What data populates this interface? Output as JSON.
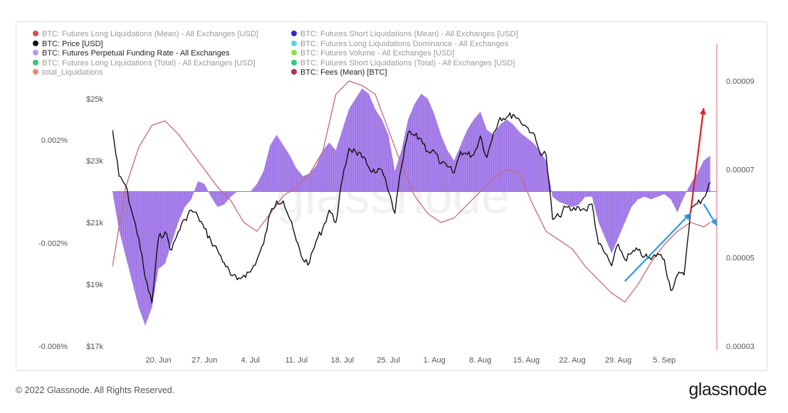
{
  "legend": [
    {
      "label": "BTC: Futures Long Liquidations (Mean) - All Exchanges [USD]",
      "color": "#e0474c",
      "dim": true,
      "col": 0,
      "row": 0
    },
    {
      "label": "BTC: Futures Short Liquidations (Mean) - All Exchanges [USD]",
      "color": "#2d2ad6",
      "dim": true,
      "col": 1,
      "row": 0
    },
    {
      "label": "BTC: Price [USD]",
      "color": "#111111",
      "dim": false,
      "col": 0,
      "row": 1
    },
    {
      "label": "BTC: Futures Long Liquidations Dominance - All Exchanges",
      "color": "#56d6e6",
      "dim": true,
      "col": 1,
      "row": 1
    },
    {
      "label": "BTC: Futures Perpetual Funding Rate - All Exchanges",
      "color": "#b49be8",
      "dim": false,
      "col": 0,
      "row": 2
    },
    {
      "label": "BTC: Futures Volume - All Exchanges [USD]",
      "color": "#8ee04a",
      "dim": true,
      "col": 1,
      "row": 2
    },
    {
      "label": "BTC: Futures Long Liquidations (Total) - All Exchanges [USD]",
      "color": "#3ec27c",
      "dim": true,
      "col": 0,
      "row": 3
    },
    {
      "label": "BTC: Futures Short Liquidations (Total) - All Exchanges [USD]",
      "color": "#2ad07a",
      "dim": true,
      "col": 1,
      "row": 3
    },
    {
      "label": "total_Liquidations",
      "color": "#f0877a",
      "dim": true,
      "col": 0,
      "row": 4
    },
    {
      "label": "BTC: Fees (Mean) [BTC]",
      "color": "#b0344e",
      "dim": false,
      "col": 1,
      "row": 4
    }
  ],
  "footer": {
    "copyright": "© 2022 Glassnode. All Rights Reserved.",
    "brand": "glassnode"
  },
  "watermark": "glassnode",
  "colors": {
    "funding_fill": "#9b6fe6",
    "funding_stroke": "#7a4bd6",
    "price": "#111111",
    "fees": "#c76a7e",
    "arrow_up": "#e02020",
    "arrow_trend": "#2a9ae8"
  },
  "chart_data": {
    "type": "line",
    "x_ticks": [
      "20. Jun",
      "27. Jun",
      "4. Jul",
      "11. Jul",
      "18. Jul",
      "25. Jul",
      "1. Aug",
      "8. Aug",
      "15. Aug",
      "22. Aug",
      "29. Aug",
      "5. Sep"
    ],
    "price_axis": {
      "ticks": [
        "$25k",
        "$23k",
        "$21k",
        "$19k",
        "$17k"
      ],
      "values": [
        25000,
        23000,
        21000,
        19000,
        17000
      ]
    },
    "funding_axis": {
      "ticks": [
        "0.002%",
        "-0.002%",
        "-0.006%"
      ],
      "values": [
        0.002,
        -0.002,
        -0.006
      ]
    },
    "fees_axis": {
      "ticks": [
        "0.00009",
        "0.00007",
        "0.00005",
        "0.00003"
      ],
      "values": [
        9e-05,
        7e-05,
        5e-05,
        3e-05
      ]
    },
    "series": [
      {
        "name": "BTC: Price [USD]",
        "values": [
          [
            "2022-06-13",
            24000
          ],
          [
            "2022-06-14",
            22500
          ],
          [
            "2022-06-15",
            22200
          ],
          [
            "2022-06-16",
            21300
          ],
          [
            "2022-06-17",
            20500
          ],
          [
            "2022-06-18",
            19200
          ],
          [
            "2022-06-19",
            18400
          ],
          [
            "2022-06-20",
            20500
          ],
          [
            "2022-06-21",
            20700
          ],
          [
            "2022-06-22",
            20100
          ],
          [
            "2022-06-23",
            20700
          ],
          [
            "2022-06-24",
            21100
          ],
          [
            "2022-06-25",
            21400
          ],
          [
            "2022-06-26",
            21200
          ],
          [
            "2022-06-27",
            20800
          ],
          [
            "2022-06-28",
            20400
          ],
          [
            "2022-06-29",
            20100
          ],
          [
            "2022-06-30",
            19700
          ],
          [
            "2022-07-01",
            19300
          ],
          [
            "2022-07-02",
            19150
          ],
          [
            "2022-07-03",
            19300
          ],
          [
            "2022-07-04",
            19400
          ],
          [
            "2022-07-05",
            19800
          ],
          [
            "2022-07-06",
            20300
          ],
          [
            "2022-07-07",
            21300
          ],
          [
            "2022-07-08",
            21700
          ],
          [
            "2022-07-09",
            21700
          ],
          [
            "2022-07-10",
            21100
          ],
          [
            "2022-07-11",
            20400
          ],
          [
            "2022-07-12",
            19800
          ],
          [
            "2022-07-13",
            19700
          ],
          [
            "2022-07-14",
            20400
          ],
          [
            "2022-07-15",
            20800
          ],
          [
            "2022-07-16",
            21400
          ],
          [
            "2022-07-17",
            21000
          ],
          [
            "2022-07-18",
            22400
          ],
          [
            "2022-07-19",
            23400
          ],
          [
            "2022-07-20",
            23300
          ],
          [
            "2022-07-21",
            23100
          ],
          [
            "2022-07-22",
            22800
          ],
          [
            "2022-07-23",
            22600
          ],
          [
            "2022-07-24",
            22700
          ],
          [
            "2022-07-25",
            22000
          ],
          [
            "2022-07-26",
            21300
          ],
          [
            "2022-07-27",
            22800
          ],
          [
            "2022-07-28",
            23900
          ],
          [
            "2022-07-29",
            23800
          ],
          [
            "2022-07-30",
            23700
          ],
          [
            "2022-07-31",
            23300
          ],
          [
            "2022-08-01",
            23300
          ],
          [
            "2022-08-02",
            22900
          ],
          [
            "2022-08-03",
            22800
          ],
          [
            "2022-08-04",
            22600
          ],
          [
            "2022-08-05",
            23300
          ],
          [
            "2022-08-06",
            23200
          ],
          [
            "2022-08-07",
            23200
          ],
          [
            "2022-08-08",
            23800
          ],
          [
            "2022-08-09",
            23100
          ],
          [
            "2022-08-10",
            23900
          ],
          [
            "2022-08-11",
            24400
          ],
          [
            "2022-08-12",
            24400
          ],
          [
            "2022-08-13",
            24500
          ],
          [
            "2022-08-14",
            24300
          ],
          [
            "2022-08-15",
            24100
          ],
          [
            "2022-08-16",
            23900
          ],
          [
            "2022-08-17",
            23300
          ],
          [
            "2022-08-18",
            23200
          ],
          [
            "2022-08-19",
            21100
          ],
          [
            "2022-08-20",
            21200
          ],
          [
            "2022-08-21",
            21500
          ],
          [
            "2022-08-22",
            21400
          ],
          [
            "2022-08-23",
            21500
          ],
          [
            "2022-08-24",
            21400
          ],
          [
            "2022-08-25",
            21600
          ],
          [
            "2022-08-26",
            20300
          ],
          [
            "2022-08-27",
            20000
          ],
          [
            "2022-08-28",
            19600
          ],
          [
            "2022-08-29",
            20300
          ],
          [
            "2022-08-30",
            19800
          ],
          [
            "2022-08-31",
            20000
          ],
          [
            "2022-09-01",
            20100
          ],
          [
            "2022-09-02",
            19900
          ],
          [
            "2022-09-03",
            19800
          ],
          [
            "2022-09-04",
            20000
          ],
          [
            "2022-09-05",
            19800
          ],
          [
            "2022-09-06",
            18800
          ],
          [
            "2022-09-07",
            19300
          ],
          [
            "2022-09-08",
            19300
          ],
          [
            "2022-09-09",
            21400
          ],
          [
            "2022-09-10",
            21600
          ],
          [
            "2022-09-11",
            21800
          ],
          [
            "2022-09-12",
            22300
          ]
        ]
      },
      {
        "name": "BTC: Futures Perpetual Funding Rate - All Exchanges",
        "values": [
          [
            "2022-06-13",
            0.0
          ],
          [
            "2022-06-14",
            -0.0015
          ],
          [
            "2022-06-15",
            -0.0025
          ],
          [
            "2022-06-16",
            -0.0035
          ],
          [
            "2022-06-17",
            -0.0045
          ],
          [
            "2022-06-18",
            -0.0052
          ],
          [
            "2022-06-19",
            -0.0045
          ],
          [
            "2022-06-20",
            -0.003
          ],
          [
            "2022-06-21",
            -0.0028
          ],
          [
            "2022-06-22",
            -0.002
          ],
          [
            "2022-06-23",
            -0.0012
          ],
          [
            "2022-06-24",
            -0.0006
          ],
          [
            "2022-06-25",
            -0.0003
          ],
          [
            "2022-06-26",
            0.0004
          ],
          [
            "2022-06-27",
            0.0003
          ],
          [
            "2022-06-28",
            -0.0002
          ],
          [
            "2022-06-29",
            -0.0006
          ],
          [
            "2022-06-30",
            -0.0005
          ],
          [
            "2022-07-01",
            -0.0002
          ],
          [
            "2022-07-02",
            0.0
          ],
          [
            "2022-07-03",
            0.0
          ],
          [
            "2022-07-04",
            0.0
          ],
          [
            "2022-07-05",
            0.0003
          ],
          [
            "2022-07-06",
            0.0008
          ],
          [
            "2022-07-07",
            0.0018
          ],
          [
            "2022-07-08",
            0.0022
          ],
          [
            "2022-07-09",
            0.0018
          ],
          [
            "2022-07-10",
            0.0014
          ],
          [
            "2022-07-11",
            0.0009
          ],
          [
            "2022-07-12",
            0.0006
          ],
          [
            "2022-07-13",
            0.0007
          ],
          [
            "2022-07-14",
            0.001
          ],
          [
            "2022-07-15",
            0.0016
          ],
          [
            "2022-07-16",
            0.0019
          ],
          [
            "2022-07-17",
            0.0016
          ],
          [
            "2022-07-18",
            0.0024
          ],
          [
            "2022-07-19",
            0.0032
          ],
          [
            "2022-07-20",
            0.0036
          ],
          [
            "2022-07-21",
            0.004
          ],
          [
            "2022-07-22",
            0.0038
          ],
          [
            "2022-07-23",
            0.0032
          ],
          [
            "2022-07-24",
            0.0028
          ],
          [
            "2022-07-25",
            0.0022
          ],
          [
            "2022-07-26",
            0.0008
          ],
          [
            "2022-07-27",
            0.0016
          ],
          [
            "2022-07-28",
            0.0028
          ],
          [
            "2022-07-29",
            0.0034
          ],
          [
            "2022-07-30",
            0.0038
          ],
          [
            "2022-07-31",
            0.0036
          ],
          [
            "2022-08-01",
            0.003
          ],
          [
            "2022-08-02",
            0.0022
          ],
          [
            "2022-08-03",
            0.0016
          ],
          [
            "2022-08-04",
            0.0012
          ],
          [
            "2022-08-05",
            0.0018
          ],
          [
            "2022-08-06",
            0.0024
          ],
          [
            "2022-08-07",
            0.0028
          ],
          [
            "2022-08-08",
            0.0031
          ],
          [
            "2022-08-09",
            0.0024
          ],
          [
            "2022-08-10",
            0.0022
          ],
          [
            "2022-08-11",
            0.0026
          ],
          [
            "2022-08-12",
            0.0028
          ],
          [
            "2022-08-13",
            0.0026
          ],
          [
            "2022-08-14",
            0.0023
          ],
          [
            "2022-08-15",
            0.0021
          ],
          [
            "2022-08-16",
            0.0019
          ],
          [
            "2022-08-17",
            0.0016
          ],
          [
            "2022-08-18",
            0.0012
          ],
          [
            "2022-08-19",
            -0.0002
          ],
          [
            "2022-08-20",
            -0.0004
          ],
          [
            "2022-08-21",
            -0.0005
          ],
          [
            "2022-08-22",
            -0.0006
          ],
          [
            "2022-08-23",
            -0.0005
          ],
          [
            "2022-08-24",
            -0.0002
          ],
          [
            "2022-08-25",
            -0.0002
          ],
          [
            "2022-08-26",
            -0.0012
          ],
          [
            "2022-08-27",
            -0.0018
          ],
          [
            "2022-08-28",
            -0.0024
          ],
          [
            "2022-08-29",
            -0.0018
          ],
          [
            "2022-08-30",
            -0.0012
          ],
          [
            "2022-08-31",
            -0.0006
          ],
          [
            "2022-09-01",
            -0.0003
          ],
          [
            "2022-09-02",
            -0.0002
          ],
          [
            "2022-09-03",
            -0.0003
          ],
          [
            "2022-09-04",
            -0.0002
          ],
          [
            "2022-09-05",
            -0.0001
          ],
          [
            "2022-09-06",
            -0.0003
          ],
          [
            "2022-09-07",
            -0.0008
          ],
          [
            "2022-09-08",
            -0.0002
          ],
          [
            "2022-09-09",
            0.0003
          ],
          [
            "2022-09-10",
            0.0007
          ],
          [
            "2022-09-11",
            0.0012
          ],
          [
            "2022-09-12",
            0.0014
          ]
        ]
      },
      {
        "name": "BTC: Fees (Mean) [BTC]",
        "values": [
          [
            "2022-06-13",
            4.8e-05
          ],
          [
            "2022-06-15",
            6.6e-05
          ],
          [
            "2022-06-17",
            7.5e-05
          ],
          [
            "2022-06-19",
            8e-05
          ],
          [
            "2022-06-21",
            8.1e-05
          ],
          [
            "2022-06-23",
            7.8e-05
          ],
          [
            "2022-06-25",
            7.4e-05
          ],
          [
            "2022-06-27",
            7e-05
          ],
          [
            "2022-06-29",
            6.6e-05
          ],
          [
            "2022-07-01",
            6.3e-05
          ],
          [
            "2022-07-03",
            5.8e-05
          ],
          [
            "2022-07-05",
            5.6e-05
          ],
          [
            "2022-07-07",
            6e-05
          ],
          [
            "2022-07-09",
            6.4e-05
          ],
          [
            "2022-07-11",
            6.6e-05
          ],
          [
            "2022-07-13",
            6.9e-05
          ],
          [
            "2022-07-15",
            7.4e-05
          ],
          [
            "2022-07-17",
            8.7e-05
          ],
          [
            "2022-07-19",
            9e-05
          ],
          [
            "2022-07-21",
            8.9e-05
          ],
          [
            "2022-07-23",
            8.7e-05
          ],
          [
            "2022-07-25",
            7.9e-05
          ],
          [
            "2022-07-27",
            7.1e-05
          ],
          [
            "2022-07-29",
            6.4e-05
          ],
          [
            "2022-07-31",
            6e-05
          ],
          [
            "2022-08-02",
            5.8e-05
          ],
          [
            "2022-08-04",
            5.9e-05
          ],
          [
            "2022-08-06",
            6.2e-05
          ],
          [
            "2022-08-08",
            6.5e-05
          ],
          [
            "2022-08-10",
            6.8e-05
          ],
          [
            "2022-08-12",
            7e-05
          ],
          [
            "2022-08-14",
            6.9e-05
          ],
          [
            "2022-08-16",
            6.2e-05
          ],
          [
            "2022-08-18",
            5.6e-05
          ],
          [
            "2022-08-20",
            5.4e-05
          ],
          [
            "2022-08-22",
            5.2e-05
          ],
          [
            "2022-08-24",
            4.8e-05
          ],
          [
            "2022-08-26",
            4.5e-05
          ],
          [
            "2022-08-28",
            4.2e-05
          ],
          [
            "2022-08-30",
            4e-05
          ],
          [
            "2022-09-01",
            4.4e-05
          ],
          [
            "2022-09-03",
            4.9e-05
          ],
          [
            "2022-09-05",
            5.3e-05
          ],
          [
            "2022-09-07",
            5.6e-05
          ],
          [
            "2022-09-09",
            5.8e-05
          ],
          [
            "2022-09-11",
            5.7e-05
          ],
          [
            "2022-09-12",
            5.8e-05
          ]
        ]
      }
    ],
    "annotations": [
      {
        "type": "arrow",
        "color": "red",
        "from": [
          "2022-09-09",
          21300
        ],
        "to": [
          "2022-09-11",
          24700
        ]
      },
      {
        "type": "arrow",
        "color": "blue",
        "from": [
          "2022-08-30",
          19100
        ],
        "to": [
          "2022-09-09",
          21300
        ]
      },
      {
        "type": "arrow",
        "color": "blue",
        "from": [
          "2022-09-11",
          21600
        ],
        "to": [
          "2022-09-13",
          20900
        ]
      }
    ]
  }
}
